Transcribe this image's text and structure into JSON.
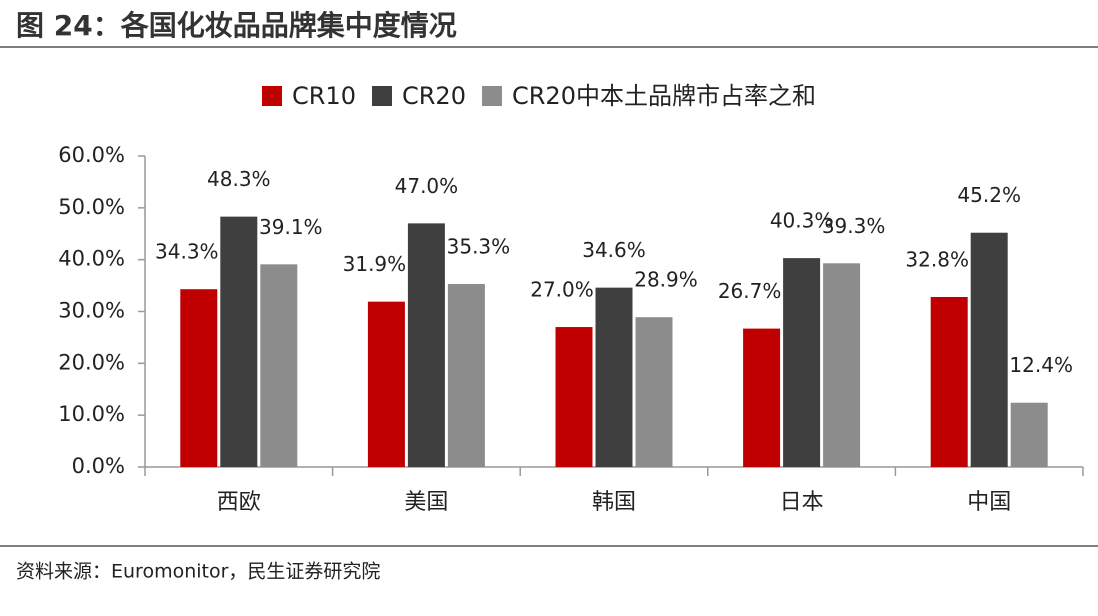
{
  "chart_data": {
    "type": "bar",
    "title": "图 24：各国化妆品品牌集中度情况",
    "source": "资料来源：Euromonitor，民生证券研究院",
    "categories": [
      "西欧",
      "美国",
      "韩国",
      "日本",
      "中国"
    ],
    "series": [
      {
        "name": "CR10",
        "color": "#c00000",
        "values": [
          34.3,
          31.9,
          27.0,
          26.7,
          32.8
        ],
        "value_labels": [
          "34.3%",
          "31.9%",
          "27.0%",
          "26.7%",
          "32.8%"
        ]
      },
      {
        "name": "CR20",
        "color": "#3f3f3f",
        "values": [
          48.3,
          47.0,
          34.6,
          40.3,
          45.2
        ],
        "value_labels": [
          "48.3%",
          "47.0%",
          "34.6%",
          "40.3%",
          "45.2%"
        ]
      },
      {
        "name": "CR20中本土品牌市占率之和",
        "color": "#8c8c8c",
        "values": [
          39.1,
          35.3,
          28.9,
          39.3,
          12.4
        ],
        "value_labels": [
          "39.1%",
          "35.3%",
          "28.9%",
          "39.3%",
          "12.4%"
        ]
      }
    ],
    "ylim": [
      0,
      60
    ],
    "yticks": [
      {
        "value": 0,
        "label": "0.0%"
      },
      {
        "value": 10,
        "label": "10.0%"
      },
      {
        "value": 20,
        "label": "20.0%"
      },
      {
        "value": 30,
        "label": "30.0%"
      },
      {
        "value": 40,
        "label": "40.0%"
      },
      {
        "value": 50,
        "label": "50.0%"
      },
      {
        "value": 60,
        "label": "60.0%"
      }
    ],
    "legend": "top",
    "grid": false
  }
}
